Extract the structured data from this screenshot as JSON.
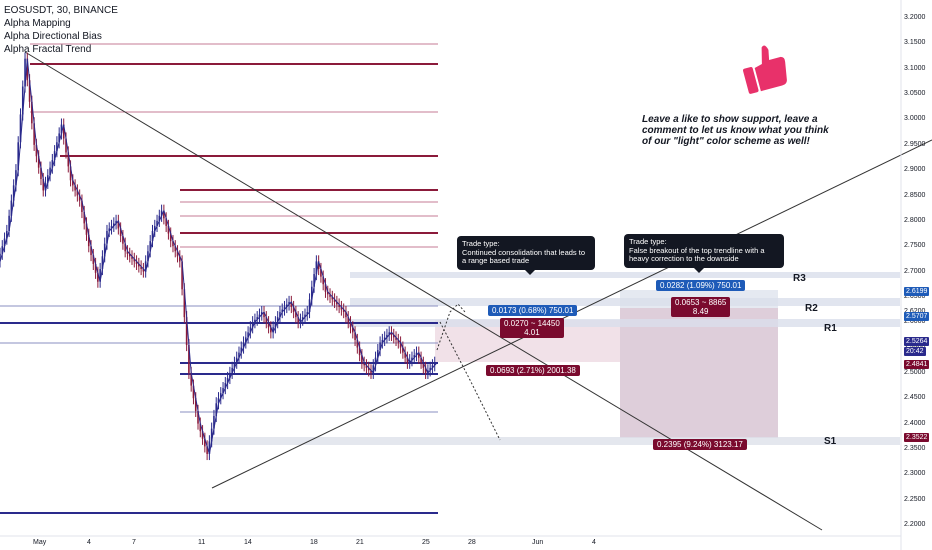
{
  "legend": {
    "symbol": "EOSUSDT, 30, BINANCE",
    "indicators": [
      "Alpha Mapping",
      "Alpha Directional Bias",
      "Alpha Fractal Trend"
    ]
  },
  "note": "Leave a like to show support, leave a comment to let us know what you think of our \"light\" color scheme as well!",
  "thumb_icon": "thumbs-up-icon",
  "callouts": [
    {
      "title": "Trade type:",
      "text": "Continued consolidation that leads to a range based trade"
    },
    {
      "title": "Trade type:",
      "text": "False breakout of the top trendline with a heavy correction to the downside"
    }
  ],
  "measures": {
    "m1": "0.0173 (0.68%) 750.01",
    "m2a": "0.0270 ~ 14450",
    "m2b": "4.01",
    "m3": "0.0693 (2.71%) 2001.38",
    "m4": "0.0282 (1.09%) 750.01",
    "m5a": "0.0653 ~ 8865",
    "m5b": "8.49",
    "m6": "0.2395 (9.24%) 3123.17"
  },
  "levels": {
    "r3": "R3",
    "r2": "R2",
    "r1": "R1",
    "s1": "S1"
  },
  "price_tags": {
    "t1": "2.6199",
    "t2": "2.5707",
    "t3": "2.5264",
    "t4": "20:42",
    "t5": "2.4841",
    "t6": "2.3522"
  },
  "colors": {
    "accent_blue": "#1e5bb8",
    "accent_red": "#7a0a2e",
    "up": "#2a2a8c",
    "down": "#8b1a3a",
    "thumb": "#e8316a"
  },
  "chart_data": {
    "type": "line",
    "y_ticks": [
      "3.2000",
      "3.1500",
      "3.1000",
      "3.0500",
      "3.0000",
      "2.9500",
      "2.9000",
      "2.8500",
      "2.8000",
      "2.7500",
      "2.7000",
      "2.6500",
      "2.6200",
      "2.6000",
      "2.5500",
      "2.5000",
      "2.4500",
      "2.4000",
      "2.3500",
      "2.3000",
      "2.2500",
      "2.2000"
    ],
    "x_ticks": [
      "May",
      "4",
      "7",
      "11",
      "14",
      "18",
      "21",
      "25",
      "28",
      "Jun",
      "4"
    ],
    "ylim": [
      2.19,
      3.22
    ],
    "series": [
      {
        "values": [
          2.72,
          2.78,
          2.9,
          3.12,
          2.95,
          2.86,
          2.92,
          2.99,
          2.88,
          2.84,
          2.75,
          2.68,
          2.78,
          2.8,
          2.74,
          2.72,
          2.7,
          2.78,
          2.82,
          2.76,
          2.72,
          2.5,
          2.4,
          2.34,
          2.44,
          2.48,
          2.52,
          2.56,
          2.6,
          2.62,
          2.58,
          2.62,
          2.64,
          2.6,
          2.62,
          2.72,
          2.66,
          2.64,
          2.62,
          2.58,
          2.52,
          2.5,
          2.56,
          2.58,
          2.56,
          2.52,
          2.54,
          2.5,
          2.52
        ]
      }
    ]
  }
}
